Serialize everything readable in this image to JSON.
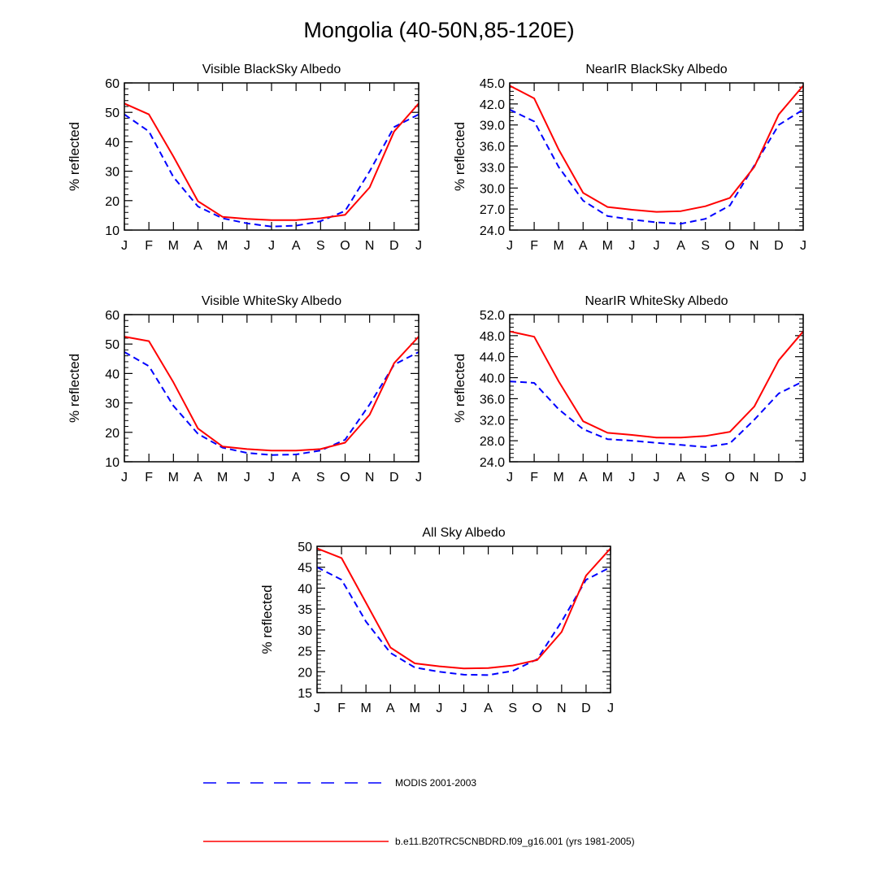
{
  "title": "Mongolia (40-50N,85-120E)",
  "colors": {
    "model": "#ff0000",
    "modis": "#0000ff",
    "axis": "#000000"
  },
  "legend": {
    "modis_label": "MODIS 2001-2003",
    "model_label": "b.e11.B20TRC5CNBDRD.f09_g16.001 (yrs 1981-2005)"
  },
  "chart_data": [
    {
      "type": "line",
      "title": "Visible BlackSky Albedo",
      "xlabel": "",
      "ylabel": "% reflected",
      "categories": [
        "J",
        "F",
        "M",
        "A",
        "M",
        "J",
        "J",
        "A",
        "S",
        "O",
        "N",
        "D",
        "J"
      ],
      "ylim": [
        10,
        60
      ],
      "yticks": [
        "10",
        "20",
        "30",
        "40",
        "50",
        "60"
      ],
      "series": [
        {
          "name": "MODIS 2001-2003",
          "style": "dashed",
          "color": "#0000ff",
          "values": [
            49.3,
            43.5,
            28.0,
            18.0,
            14.0,
            12.3,
            11.2,
            11.5,
            13.0,
            16.5,
            30.0,
            45.0,
            49.3
          ]
        },
        {
          "name": "b.e11.B20TRC5CNBDRD.f09_g16.001 (yrs 1981-2005)",
          "style": "solid",
          "color": "#ff0000",
          "values": [
            53.0,
            49.3,
            35.0,
            19.8,
            14.5,
            13.8,
            13.4,
            13.4,
            14.0,
            15.2,
            24.5,
            43.5,
            53.0
          ]
        }
      ]
    },
    {
      "type": "line",
      "title": "NearIR BlackSky Albedo",
      "xlabel": "",
      "ylabel": "% reflected",
      "categories": [
        "J",
        "F",
        "M",
        "A",
        "M",
        "J",
        "J",
        "A",
        "S",
        "O",
        "N",
        "D",
        "J"
      ],
      "ylim": [
        24,
        45
      ],
      "yticks": [
        "24.0",
        "27.0",
        "30.0",
        "33.0",
        "36.0",
        "39.0",
        "42.0",
        "45.0"
      ],
      "series": [
        {
          "name": "MODIS 2001-2003",
          "style": "dashed",
          "color": "#0000ff",
          "values": [
            41.2,
            39.5,
            33.0,
            28.2,
            26.0,
            25.5,
            25.1,
            24.9,
            25.6,
            27.5,
            33.2,
            39.0,
            41.2
          ]
        },
        {
          "name": "b.e11.B20TRC5CNBDRD.f09_g16.001 (yrs 1981-2005)",
          "style": "solid",
          "color": "#ff0000",
          "values": [
            44.6,
            42.8,
            35.5,
            29.3,
            27.3,
            26.9,
            26.6,
            26.7,
            27.4,
            28.6,
            33.0,
            40.5,
            44.6
          ]
        }
      ]
    },
    {
      "type": "line",
      "title": "Visible WhiteSky Albedo",
      "xlabel": "",
      "ylabel": "% reflected",
      "categories": [
        "J",
        "F",
        "M",
        "A",
        "M",
        "J",
        "J",
        "A",
        "S",
        "O",
        "N",
        "D",
        "J"
      ],
      "ylim": [
        10,
        60
      ],
      "yticks": [
        "10",
        "20",
        "30",
        "40",
        "50",
        "60"
      ],
      "series": [
        {
          "name": "MODIS 2001-2003",
          "style": "dashed",
          "color": "#0000ff",
          "values": [
            47.3,
            42.5,
            29.0,
            19.5,
            14.8,
            13.0,
            12.3,
            12.5,
            13.8,
            17.5,
            29.5,
            43.0,
            47.3
          ]
        },
        {
          "name": "b.e11.B20TRC5CNBDRD.f09_g16.001 (yrs 1981-2005)",
          "style": "solid",
          "color": "#ff0000",
          "values": [
            52.5,
            51.0,
            37.0,
            21.3,
            15.2,
            14.3,
            13.8,
            13.8,
            14.3,
            16.5,
            26.0,
            43.5,
            52.5
          ]
        }
      ]
    },
    {
      "type": "line",
      "title": "NearIR WhiteSky Albedo",
      "xlabel": "",
      "ylabel": "% reflected",
      "categories": [
        "J",
        "F",
        "M",
        "A",
        "M",
        "J",
        "J",
        "A",
        "S",
        "O",
        "N",
        "D",
        "J"
      ],
      "ylim": [
        24,
        52
      ],
      "yticks": [
        "24.0",
        "28.0",
        "32.0",
        "36.0",
        "40.0",
        "44.0",
        "48.0",
        "52.0"
      ],
      "series": [
        {
          "name": "MODIS 2001-2003",
          "style": "dashed",
          "color": "#0000ff",
          "values": [
            39.3,
            39.0,
            34.0,
            30.2,
            28.3,
            28.0,
            27.6,
            27.2,
            26.8,
            27.5,
            32.0,
            37.0,
            39.3
          ]
        },
        {
          "name": "b.e11.B20TRC5CNBDRD.f09_g16.001 (yrs 1981-2005)",
          "style": "solid",
          "color": "#ff0000",
          "values": [
            48.8,
            47.8,
            39.3,
            31.7,
            29.5,
            29.1,
            28.6,
            28.6,
            28.9,
            29.7,
            34.5,
            43.3,
            48.8
          ]
        }
      ]
    },
    {
      "type": "line",
      "title": "All Sky Albedo",
      "xlabel": "",
      "ylabel": "% reflected",
      "categories": [
        "J",
        "F",
        "M",
        "A",
        "M",
        "J",
        "J",
        "A",
        "S",
        "O",
        "N",
        "D",
        "J"
      ],
      "ylim": [
        15,
        50
      ],
      "yticks": [
        "15",
        "20",
        "25",
        "30",
        "35",
        "40",
        "45",
        "50"
      ],
      "series": [
        {
          "name": "MODIS 2001-2003",
          "style": "dashed",
          "color": "#0000ff",
          "values": [
            45.0,
            42.0,
            32.0,
            24.5,
            21.0,
            20.0,
            19.3,
            19.2,
            20.2,
            23.0,
            32.0,
            42.0,
            45.0
          ]
        },
        {
          "name": "b.e11.B20TRC5CNBDRD.f09_g16.001 (yrs 1981-2005)",
          "style": "solid",
          "color": "#ff0000",
          "values": [
            49.5,
            47.2,
            36.5,
            25.8,
            22.0,
            21.3,
            20.8,
            20.9,
            21.5,
            22.8,
            29.5,
            43.0,
            49.5
          ]
        }
      ]
    }
  ]
}
